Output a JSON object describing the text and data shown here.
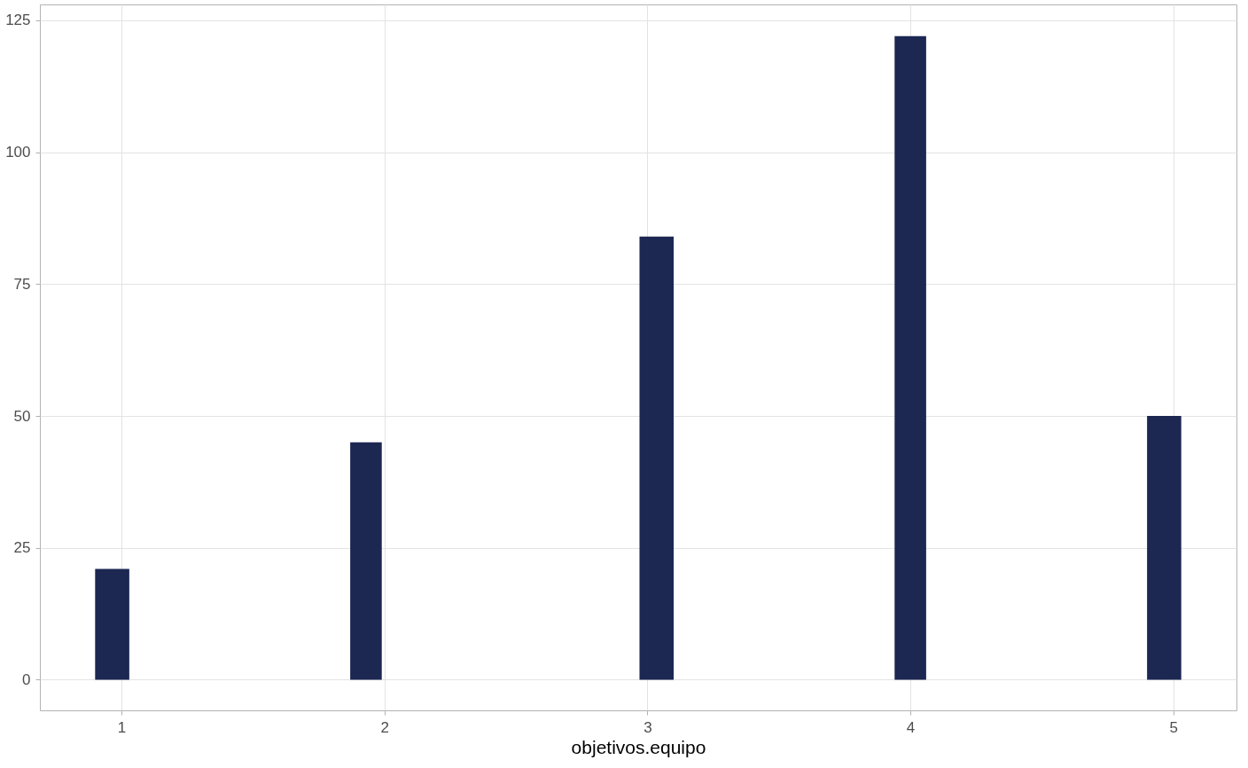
{
  "chart_data": {
    "type": "histogram",
    "xlabel": "objetivos.equipo",
    "bins": [
      0.9,
      1.03,
      1.87,
      1.99,
      2.97,
      3.1,
      3.94,
      4.06,
      4.9,
      5.03
    ],
    "values": [
      21,
      0,
      45,
      0,
      84,
      0,
      122,
      0,
      50
    ],
    "color": "#1c2752",
    "xlim": [
      0.69,
      5.24
    ],
    "xticks": [
      1,
      2,
      3,
      4,
      5
    ],
    "ylim": [
      -5.8,
      128
    ],
    "yticks": [
      0,
      25,
      50,
      75,
      100,
      125
    ],
    "grid": true
  }
}
